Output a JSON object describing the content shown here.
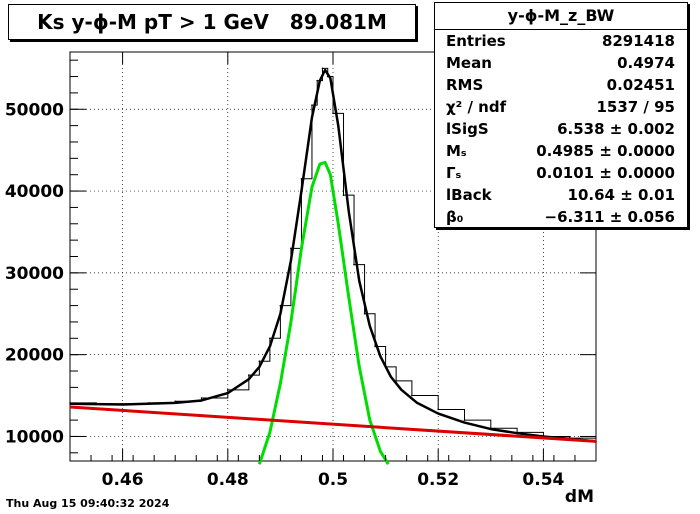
{
  "chart_data": {
    "type": "line",
    "title": "Ks y-ϕ-M pT > 1 GeV   89.081M",
    "xlabel": "dM",
    "ylabel": "",
    "xlim": [
      0.45,
      0.55
    ],
    "ylim": [
      7000,
      57000
    ],
    "grid": true,
    "x_ticks": [
      "0.46",
      "0.48",
      "0.5",
      "0.52",
      "0.54"
    ],
    "y_ticks": [
      "10000",
      "20000",
      "30000",
      "40000",
      "50000"
    ],
    "series": [
      {
        "color": "#000000",
        "style": "histogram",
        "x": [
          0.45,
          0.455,
          0.46,
          0.465,
          0.47,
          0.475,
          0.48,
          0.484,
          0.486,
          0.488,
          0.49,
          0.492,
          0.494,
          0.496,
          0.497,
          0.498,
          0.499,
          0.5,
          0.502,
          0.504,
          0.506,
          0.508,
          0.51,
          0.512,
          0.515,
          0.52,
          0.525,
          0.53,
          0.535,
          0.54,
          0.545,
          0.55
        ],
        "y": [
          14100,
          14000,
          14000,
          14100,
          14300,
          14700,
          15700,
          17500,
          19200,
          22000,
          26000,
          33000,
          41500,
          50500,
          53500,
          55000,
          54000,
          49500,
          39500,
          31000,
          25000,
          21000,
          18500,
          16800,
          15000,
          13300,
          12000,
          11000,
          10500,
          10000,
          9800,
          9400
        ]
      },
      {
        "color": "#000000",
        "style": "fit",
        "x": [
          0.45,
          0.46,
          0.47,
          0.475,
          0.48,
          0.484,
          0.486,
          0.488,
          0.49,
          0.492,
          0.494,
          0.496,
          0.4975,
          0.4985,
          0.4995,
          0.501,
          0.503,
          0.505,
          0.507,
          0.509,
          0.511,
          0.513,
          0.516,
          0.52,
          0.525,
          0.53,
          0.535,
          0.54,
          0.545,
          0.55
        ],
        "y": [
          14000,
          13900,
          14100,
          14400,
          15300,
          17000,
          18500,
          21000,
          25000,
          31500,
          40000,
          49000,
          53500,
          54800,
          53800,
          48000,
          37500,
          29000,
          23500,
          19800,
          17300,
          15700,
          14100,
          12800,
          11700,
          10900,
          10400,
          10000,
          9700,
          9400
        ]
      },
      {
        "color": "#00dd00",
        "style": "fit",
        "x": [
          0.486,
          0.488,
          0.49,
          0.492,
          0.494,
          0.496,
          0.4975,
          0.4985,
          0.4995,
          0.501,
          0.503,
          0.505,
          0.507,
          0.509,
          0.5105
        ],
        "y": [
          6600,
          10500,
          16500,
          24000,
          33000,
          40500,
          43300,
          43500,
          42000,
          36000,
          27000,
          18500,
          12000,
          8200,
          6600
        ]
      },
      {
        "color": "#dd0000",
        "style": "fit",
        "x": [
          0.45,
          0.55
        ],
        "y": [
          13600,
          9400
        ]
      }
    ]
  },
  "stats": {
    "title": "y-ϕ-M_z_BW",
    "rows": [
      {
        "key": "Entries",
        "value": "8291418"
      },
      {
        "key": "Mean",
        "value": "0.4974"
      },
      {
        "key": "RMS",
        "value": "0.02451"
      },
      {
        "key": "χ² / ndf",
        "value": "1537 / 95"
      },
      {
        "key": "lSigS",
        "value": "6.538 ± 0.002"
      },
      {
        "key": "Mₛ",
        "value": "0.4985 ± 0.0000"
      },
      {
        "key": "Γₛ",
        "value": "0.0101 ± 0.0000"
      },
      {
        "key": "lBack",
        "value": "10.64 ± 0.01"
      },
      {
        "key": "β₀",
        "value": "−6.311 ± 0.056"
      }
    ]
  },
  "timestamp": "Thu Aug 15 09:40:32 2024"
}
